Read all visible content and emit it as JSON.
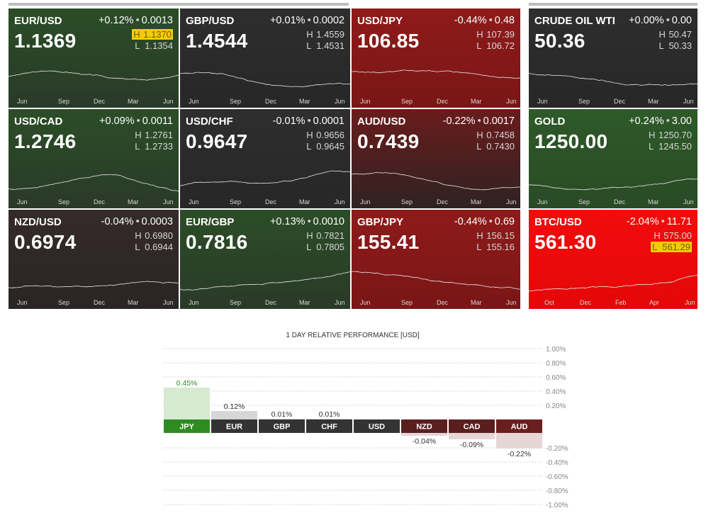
{
  "tiles": [
    {
      "symbol": "EUR/USD",
      "change_pct": "+0.12%",
      "change_abs": "0.0013",
      "price": "1.1369",
      "high": "1.1370",
      "low": "1.1354",
      "high_highlight": true,
      "low_highlight": false,
      "color": "green",
      "months": [
        "Jun",
        "Sep",
        "Dec",
        "Mar",
        "Jun"
      ]
    },
    {
      "symbol": "GBP/USD",
      "change_pct": "+0.01%",
      "change_abs": "0.0002",
      "price": "1.4544",
      "high": "1.4559",
      "low": "1.4531",
      "high_highlight": false,
      "low_highlight": false,
      "color": "neutral",
      "months": [
        "Jun",
        "Sep",
        "Dec",
        "Mar",
        "Jun"
      ]
    },
    {
      "symbol": "USD/JPY",
      "change_pct": "-0.44%",
      "change_abs": "0.48",
      "price": "106.85",
      "high": "107.39",
      "low": "106.72",
      "high_highlight": false,
      "low_highlight": false,
      "color": "red",
      "months": [
        "Jun",
        "Sep",
        "Dec",
        "Mar",
        "Jun"
      ]
    },
    {
      "symbol": "CRUDE OIL WTI",
      "change_pct": "+0.00%",
      "change_abs": "0.00",
      "price": "50.36",
      "high": "50.47",
      "low": "50.33",
      "high_highlight": false,
      "low_highlight": false,
      "color": "neutral",
      "months": [
        "Jun",
        "Sep",
        "Dec",
        "Mar",
        "Jun"
      ]
    },
    {
      "symbol": "USD/CAD",
      "change_pct": "+0.09%",
      "change_abs": "0.0011",
      "price": "1.2746",
      "high": "1.2761",
      "low": "1.2733",
      "high_highlight": false,
      "low_highlight": false,
      "color": "green",
      "months": [
        "Jun",
        "Sep",
        "Dec",
        "Mar",
        "Jun"
      ]
    },
    {
      "symbol": "USD/CHF",
      "change_pct": "-0.01%",
      "change_abs": "0.0001",
      "price": "0.9647",
      "high": "0.9656",
      "low": "0.9645",
      "high_highlight": false,
      "low_highlight": false,
      "color": "neutral",
      "months": [
        "Jun",
        "Sep",
        "Dec",
        "Mar",
        "Jun"
      ]
    },
    {
      "symbol": "AUD/USD",
      "change_pct": "-0.22%",
      "change_abs": "0.0017",
      "price": "0.7439",
      "high": "0.7458",
      "low": "0.7430",
      "high_highlight": false,
      "low_highlight": false,
      "color": "redfade",
      "months": [
        "Jun",
        "Sep",
        "Dec",
        "Mar",
        "Jun"
      ]
    },
    {
      "symbol": "GOLD",
      "change_pct": "+0.24%",
      "change_abs": "3.00",
      "price": "1250.00",
      "high": "1250.70",
      "low": "1245.50",
      "high_highlight": false,
      "low_highlight": false,
      "color": "green2",
      "months": [
        "Jun",
        "Sep",
        "Dec",
        "Mar",
        "Jun"
      ]
    },
    {
      "symbol": "NZD/USD",
      "change_pct": "-0.04%",
      "change_abs": "0.0003",
      "price": "0.6974",
      "high": "0.6980",
      "low": "0.6944",
      "high_highlight": false,
      "low_highlight": false,
      "color": "dark",
      "months": [
        "Jun",
        "Sep",
        "Dec",
        "Mar",
        "Jun"
      ]
    },
    {
      "symbol": "EUR/GBP",
      "change_pct": "+0.13%",
      "change_abs": "0.0010",
      "price": "0.7816",
      "high": "0.7821",
      "low": "0.7805",
      "high_highlight": false,
      "low_highlight": false,
      "color": "green",
      "months": [
        "Jun",
        "Sep",
        "Dec",
        "Mar",
        "Jun"
      ]
    },
    {
      "symbol": "GBP/JPY",
      "change_pct": "-0.44%",
      "change_abs": "0.69",
      "price": "155.41",
      "high": "156.15",
      "low": "155.16",
      "high_highlight": false,
      "low_highlight": false,
      "color": "red",
      "months": [
        "Jun",
        "Sep",
        "Dec",
        "Mar",
        "Jun"
      ]
    },
    {
      "symbol": "BTC/USD",
      "change_pct": "-2.04%",
      "change_abs": "11.71",
      "price": "561.30",
      "high": "575.00",
      "low": "561.29",
      "high_highlight": false,
      "low_highlight": true,
      "color": "brightred",
      "months": [
        "Oct",
        "Dec",
        "Feb",
        "Apr",
        "Jun"
      ]
    }
  ],
  "colors": {
    "green": "#2e4a2a",
    "green2": "#2e5e28",
    "neutral": "#2d2d2d",
    "dark": "#302828",
    "red": "#8a1a1a",
    "redfade": "#5a1e1e",
    "brightred": "#ee0a0a",
    "positive_bar": "#d6ead2",
    "negative_bar": "#e6d6d6",
    "flat_bar": "#d6d6d6",
    "label_green": "#2f8a22",
    "label_dark": "#333333",
    "label_red": "#6a1e1e",
    "label_darkred": "#5a1e1e"
  },
  "performance": {
    "title": "1 DAY RELATIVE PERFORMANCE  [USD]",
    "chart_data": {
      "type": "bar",
      "title": "1 DAY RELATIVE PERFORMANCE  [USD]",
      "categories": [
        "JPY",
        "EUR",
        "GBP",
        "CHF",
        "USD",
        "NZD",
        "CAD",
        "AUD"
      ],
      "values": [
        0.45,
        0.12,
        0.01,
        0.01,
        0.0,
        -0.04,
        -0.09,
        -0.22
      ],
      "value_labels": [
        "0.45%",
        "0.12%",
        "0.01%",
        "0.01%",
        "",
        "-0.04%",
        "-0.09%",
        "-0.22%"
      ],
      "ylim": [
        -1.0,
        1.0
      ],
      "yticks_pos": [
        "1.00%",
        "0.80%",
        "0.60%",
        "0.40%",
        "0.20%"
      ],
      "yticks_neg": [
        "-0.20%",
        "-0.40%",
        "-0.60%",
        "-0.80%",
        "-1.00%"
      ],
      "label_colors": [
        "green",
        "dark",
        "dark",
        "dark",
        "dark",
        "darkred",
        "darkred",
        "red"
      ]
    }
  }
}
